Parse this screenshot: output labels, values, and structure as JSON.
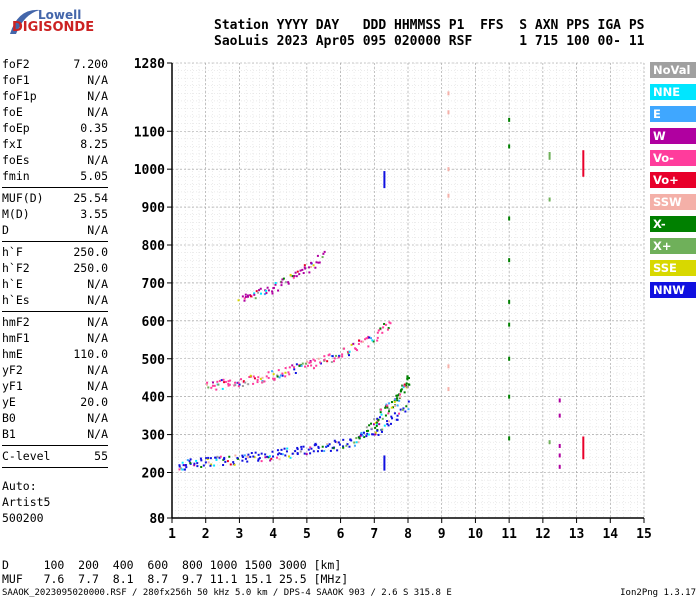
{
  "logo": {
    "brand": "Lowell",
    "name": "DIGISONDE"
  },
  "header": {
    "line1": "Station YYYY DAY   DDD HHMMSS P1  FFS  S AXN PPS IGA PS",
    "line2": "SaoLuis 2023 Apr05 095 020000 RSF      1 715 100 00- 11"
  },
  "params": [
    {
      "name": "foF2",
      "value": "7.200"
    },
    {
      "name": "foF1",
      "value": "N/A"
    },
    {
      "name": "foF1p",
      "value": "N/A"
    },
    {
      "name": "foE",
      "value": "N/A"
    },
    {
      "name": "foEp",
      "value": "0.35"
    },
    {
      "name": "fxI",
      "value": "8.25"
    },
    {
      "name": "foEs",
      "value": "N/A"
    },
    {
      "name": "fmin",
      "value": "5.05"
    },
    {
      "sep": true
    },
    {
      "name": "MUF(D)",
      "value": "25.54"
    },
    {
      "name": "M(D)",
      "value": "3.55"
    },
    {
      "name": "D",
      "value": "N/A"
    },
    {
      "sep": true
    },
    {
      "name": "h`F",
      "value": "250.0"
    },
    {
      "name": "h`F2",
      "value": "250.0"
    },
    {
      "name": "h`E",
      "value": "N/A"
    },
    {
      "name": "h`Es",
      "value": "N/A"
    },
    {
      "sep": true
    },
    {
      "name": "hmF2",
      "value": "N/A"
    },
    {
      "name": "hmF1",
      "value": "N/A"
    },
    {
      "name": "hmE",
      "value": "110.0"
    },
    {
      "name": "yF2",
      "value": "N/A"
    },
    {
      "name": "yF1",
      "value": "N/A"
    },
    {
      "name": "yE",
      "value": "20.0"
    },
    {
      "name": "B0",
      "value": "N/A"
    },
    {
      "name": "B1",
      "value": "N/A"
    },
    {
      "sep": true
    },
    {
      "name": "C-level",
      "value": "55"
    },
    {
      "sep": true
    }
  ],
  "auto": {
    "line1": "Auto:",
    "line2": "Artist5",
    "line3": "500200"
  },
  "legend": [
    {
      "label": "NoVal",
      "color": "#a0a0a0"
    },
    {
      "label": "NNE",
      "color": "#00e6ff"
    },
    {
      "label": "E",
      "color": "#3fa7ff"
    },
    {
      "label": "W",
      "color": "#b000a0"
    },
    {
      "label": "Vo-",
      "color": "#ff3c9c"
    },
    {
      "label": "Vo+",
      "color": "#e8002a"
    },
    {
      "label": "SSW",
      "color": "#f4b0a8"
    },
    {
      "label": "X-",
      "color": "#008000"
    },
    {
      "label": "X+",
      "color": "#6fb05a"
    },
    {
      "label": "SSE",
      "color": "#d8d800"
    },
    {
      "label": "NNW",
      "color": "#1010e0"
    }
  ],
  "muf_table": {
    "d_label": "D",
    "d_values": "100  200  400  600  800 1000 1500 3000 [km]",
    "m_label": "MUF",
    "m_values": "7.6  7.7  8.1  8.7  9.7 11.1 15.1 25.5 [MHz]"
  },
  "footer": "SAAOK_2023095020000.RSF / 280fx256h 50 kHz 5.0 km / DPS-4 SAAOK 903 / 2.6 S 315.8 E",
  "version": "Ion2Png 1.3.17",
  "chart_data": {
    "type": "scatter",
    "xlim": [
      1,
      15
    ],
    "ylim": [
      80,
      1280
    ],
    "xticks": [
      1,
      2,
      3,
      4,
      5,
      6,
      7,
      8,
      9,
      10,
      11,
      12,
      13,
      14,
      15
    ],
    "yticks": [
      80,
      200,
      300,
      400,
      500,
      600,
      700,
      800,
      900,
      1000,
      1100,
      1280
    ],
    "grid": true,
    "ylabel": "",
    "xlabel": "",
    "traces": [
      {
        "name": "F-trace",
        "color": "#1010e0",
        "points": [
          [
            1.2,
            220
          ],
          [
            1.5,
            225
          ],
          [
            2.0,
            228
          ],
          [
            2.5,
            232
          ],
          [
            3.0,
            238
          ],
          [
            3.5,
            243
          ],
          [
            4.0,
            248
          ],
          [
            4.5,
            254
          ],
          [
            5.0,
            262
          ],
          [
            5.5,
            268
          ],
          [
            6.0,
            276
          ],
          [
            6.5,
            290
          ],
          [
            7.0,
            310
          ],
          [
            7.5,
            340
          ],
          [
            8.0,
            380
          ]
        ]
      },
      {
        "name": "F-trace-2hop",
        "color": "#ff3c9c",
        "points": [
          [
            2.0,
            430
          ],
          [
            2.5,
            435
          ],
          [
            3.0,
            440
          ],
          [
            3.5,
            450
          ],
          [
            4.0,
            460
          ],
          [
            4.5,
            470
          ],
          [
            5.0,
            485
          ],
          [
            5.5,
            500
          ],
          [
            6.0,
            515
          ],
          [
            6.5,
            535
          ],
          [
            7.0,
            560
          ],
          [
            7.5,
            600
          ]
        ]
      },
      {
        "name": "F-trace-3hop",
        "color": "#b000a0",
        "points": [
          [
            3.0,
            655
          ],
          [
            3.5,
            672
          ],
          [
            4.0,
            690
          ],
          [
            4.5,
            712
          ],
          [
            5.0,
            740
          ],
          [
            5.5,
            775
          ]
        ]
      },
      {
        "name": "spread-F",
        "color": "#008000",
        "points": [
          [
            6.5,
            300
          ],
          [
            7.0,
            330
          ],
          [
            7.2,
            360
          ],
          [
            7.5,
            380
          ],
          [
            7.7,
            400
          ],
          [
            7.9,
            430
          ],
          [
            8.0,
            450
          ]
        ]
      },
      {
        "name": "vertical-bar-7.3",
        "color": "#1010e0",
        "points": [
          [
            7.3,
            950
          ],
          [
            7.3,
            995
          ],
          [
            7.3,
            205
          ],
          [
            7.3,
            245
          ]
        ]
      },
      {
        "name": "vertical-bar-13.2",
        "color": "#e8002a",
        "points": [
          [
            13.2,
            980
          ],
          [
            13.2,
            1050
          ],
          [
            13.2,
            235
          ],
          [
            13.2,
            295
          ]
        ]
      },
      {
        "name": "interference-9.2",
        "color": "#f4b0a8",
        "points": [
          [
            9.2,
            1200
          ],
          [
            9.2,
            1150
          ],
          [
            9.2,
            1000
          ],
          [
            9.2,
            930
          ],
          [
            9.2,
            480
          ],
          [
            9.2,
            420
          ]
        ]
      },
      {
        "name": "interference-11",
        "color": "#008000",
        "points": [
          [
            11.0,
            1130
          ],
          [
            11.0,
            1060
          ],
          [
            11.0,
            870
          ],
          [
            11.0,
            760
          ],
          [
            11.0,
            650
          ],
          [
            11.0,
            590
          ],
          [
            11.0,
            500
          ],
          [
            11.0,
            400
          ],
          [
            11.0,
            290
          ]
        ]
      },
      {
        "name": "interference-12.2",
        "color": "#6fb05a",
        "points": [
          [
            12.2,
            1040
          ],
          [
            12.2,
            1030
          ],
          [
            12.2,
            920
          ],
          [
            12.2,
            280
          ]
        ]
      },
      {
        "name": "interference-12.5",
        "color": "#b000a0",
        "points": [
          [
            12.5,
            390
          ],
          [
            12.5,
            350
          ],
          [
            12.5,
            270
          ],
          [
            12.5,
            245
          ],
          [
            12.5,
            215
          ]
        ]
      }
    ]
  }
}
